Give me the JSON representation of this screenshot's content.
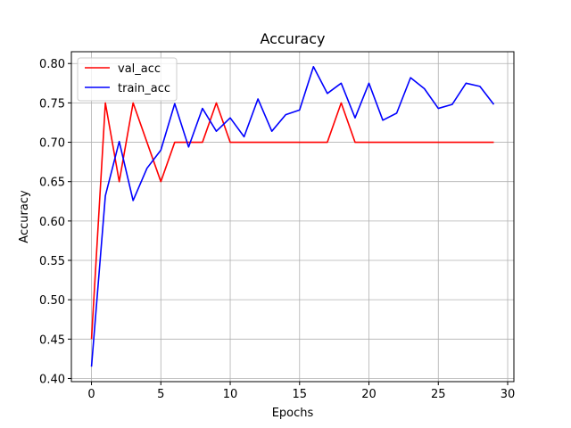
{
  "chart_data": {
    "type": "line",
    "title": "Accuracy",
    "xlabel": "Epochs",
    "ylabel": "Accuracy",
    "xlim": [
      -1.45,
      30.45
    ],
    "ylim": [
      0.396,
      0.815
    ],
    "xticks": [
      0,
      5,
      10,
      15,
      20,
      25,
      30
    ],
    "yticks": [
      0.4,
      0.45,
      0.5,
      0.55,
      0.6,
      0.65,
      0.7,
      0.75,
      0.8
    ],
    "grid": true,
    "legend_position": "top-left",
    "x": [
      0,
      1,
      2,
      3,
      4,
      5,
      6,
      7,
      8,
      9,
      10,
      11,
      12,
      13,
      14,
      15,
      16,
      17,
      18,
      19,
      20,
      21,
      22,
      23,
      24,
      25,
      26,
      27,
      28,
      29
    ],
    "series": [
      {
        "name": "val_acc",
        "color": "#ff0000",
        "values": [
          0.45,
          0.75,
          0.65,
          0.75,
          0.7,
          0.65,
          0.7,
          0.7,
          0.7,
          0.75,
          0.7,
          0.7,
          0.7,
          0.7,
          0.7,
          0.7,
          0.7,
          0.7,
          0.75,
          0.7,
          0.7,
          0.7,
          0.7,
          0.7,
          0.7,
          0.7,
          0.7,
          0.7,
          0.7,
          0.7
        ]
      },
      {
        "name": "train_acc",
        "color": "#0000ff",
        "values": [
          0.415,
          0.632,
          0.701,
          0.626,
          0.667,
          0.69,
          0.749,
          0.694,
          0.743,
          0.714,
          0.731,
          0.707,
          0.755,
          0.714,
          0.735,
          0.741,
          0.796,
          0.762,
          0.775,
          0.731,
          0.775,
          0.728,
          0.737,
          0.782,
          0.768,
          0.743,
          0.748,
          0.775,
          0.771,
          0.748
        ]
      }
    ]
  }
}
